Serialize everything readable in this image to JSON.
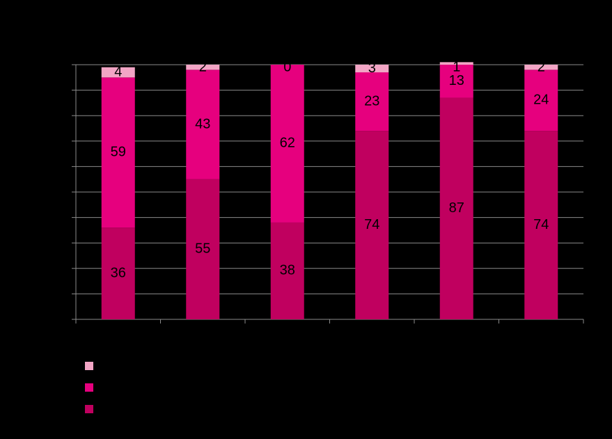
{
  "chart_data": {
    "type": "stacked-bar",
    "categories": [
      null,
      null,
      null,
      null,
      null,
      null
    ],
    "series": [
      {
        "color": "#c0005f",
        "values": [
          36,
          55,
          38,
          74,
          87,
          74
        ]
      },
      {
        "color": "#e6007e",
        "values": [
          59,
          43,
          62,
          23,
          13,
          24
        ]
      },
      {
        "color": "#f2a5c5",
        "values": [
          4,
          2,
          0,
          3,
          1,
          2
        ]
      }
    ],
    "ylim": [
      0,
      100
    ],
    "yticks": [
      0,
      10,
      20,
      30,
      40,
      50,
      60,
      70,
      80,
      90,
      100
    ],
    "grid": true,
    "legend": "bottom-left"
  }
}
